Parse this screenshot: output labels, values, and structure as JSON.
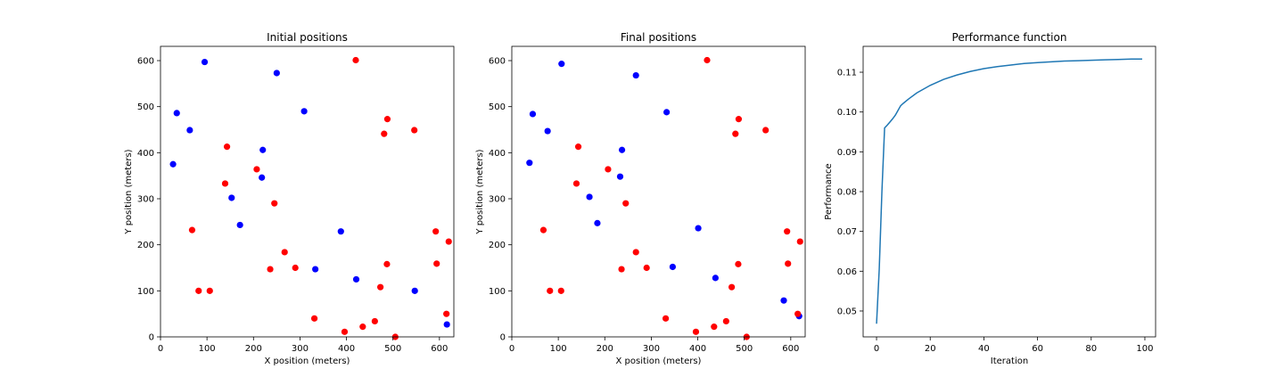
{
  "chart_data": [
    {
      "type": "scatter",
      "title": "Initial positions",
      "xlabel": "X position (meters)",
      "ylabel": "Y position (meters)",
      "xlim": [
        0,
        631
      ],
      "ylim": [
        0,
        631
      ],
      "xticks": [
        0,
        100,
        200,
        300,
        400,
        500,
        600
      ],
      "yticks": [
        0,
        100,
        200,
        300,
        400,
        500,
        600
      ],
      "grid": false,
      "series": [
        {
          "color": "#0000ff",
          "points": [
            [
              95,
              597
            ],
            [
              250,
              573
            ],
            [
              35,
              486
            ],
            [
              63,
              449
            ],
            [
              309,
              490
            ],
            [
              27,
              375
            ],
            [
              220,
              406
            ],
            [
              218,
              346
            ],
            [
              153,
              302
            ],
            [
              171,
              243
            ],
            [
              388,
              229
            ],
            [
              333,
              147
            ],
            [
              421,
              125
            ],
            [
              547,
              100
            ],
            [
              616,
              27
            ]
          ]
        },
        {
          "color": "#ff0000",
          "points": [
            [
              420,
              601
            ],
            [
              488,
              473
            ],
            [
              546,
              449
            ],
            [
              481,
              441
            ],
            [
              143,
              413
            ],
            [
              207,
              364
            ],
            [
              139,
              333
            ],
            [
              245,
              290
            ],
            [
              68,
              232
            ],
            [
              267,
              184
            ],
            [
              592,
              229
            ],
            [
              620,
              207
            ],
            [
              487,
              158
            ],
            [
              594,
              159
            ],
            [
              236,
              147
            ],
            [
              290,
              150
            ],
            [
              82,
              100
            ],
            [
              106,
              100
            ],
            [
              473,
              108
            ],
            [
              331,
              40
            ],
            [
              461,
              34
            ],
            [
              435,
              22
            ],
            [
              396,
              11
            ],
            [
              505,
              0
            ],
            [
              615,
              50
            ]
          ]
        }
      ]
    },
    {
      "type": "scatter",
      "title": "Final positions",
      "xlabel": "X position (meters)",
      "ylabel": "",
      "ylabel_visible": "Y position (meters)",
      "xlim": [
        0,
        631
      ],
      "ylim": [
        0,
        631
      ],
      "xticks": [
        0,
        100,
        200,
        300,
        400,
        500,
        600
      ],
      "yticks": [
        0,
        100,
        200,
        300,
        400,
        500,
        600
      ],
      "grid": false,
      "series": [
        {
          "color": "#0000ff",
          "points": [
            [
              107,
              593
            ],
            [
              267,
              568
            ],
            [
              45,
              484
            ],
            [
              77,
              447
            ],
            [
              333,
              488
            ],
            [
              38,
              378
            ],
            [
              237,
              406
            ],
            [
              233,
              348
            ],
            [
              167,
              304
            ],
            [
              184,
              247
            ],
            [
              401,
              236
            ],
            [
              346,
              152
            ],
            [
              438,
              128
            ],
            [
              585,
              79
            ],
            [
              618,
              45
            ]
          ]
        },
        {
          "color": "#ff0000",
          "points": [
            [
              420,
              601
            ],
            [
              488,
              473
            ],
            [
              546,
              449
            ],
            [
              481,
              441
            ],
            [
              143,
              413
            ],
            [
              207,
              364
            ],
            [
              139,
              333
            ],
            [
              245,
              290
            ],
            [
              68,
              232
            ],
            [
              267,
              184
            ],
            [
              592,
              229
            ],
            [
              620,
              207
            ],
            [
              487,
              158
            ],
            [
              594,
              159
            ],
            [
              236,
              147
            ],
            [
              290,
              150
            ],
            [
              82,
              100
            ],
            [
              106,
              100
            ],
            [
              473,
              108
            ],
            [
              331,
              40
            ],
            [
              461,
              34
            ],
            [
              435,
              22
            ],
            [
              396,
              11
            ],
            [
              505,
              0
            ],
            [
              615,
              50
            ]
          ]
        }
      ]
    },
    {
      "type": "line",
      "title": "Performance function",
      "xlabel": "Iteration",
      "ylabel": "Performance",
      "xlim": [
        -5,
        104
      ],
      "ylim": [
        0.0435,
        0.1165
      ],
      "xticks": [
        0,
        20,
        40,
        60,
        80,
        100
      ],
      "yticks": [
        0.05,
        0.06,
        0.07,
        0.08,
        0.09,
        0.1,
        0.11
      ],
      "ytick_labels": [
        "0.05",
        "0.06",
        "0.07",
        "0.08",
        "0.09",
        "0.10",
        "0.11"
      ],
      "grid": false,
      "series": [
        {
          "color": "#1f77b4",
          "x": [
            0,
            1,
            2,
            3,
            4,
            5,
            6,
            7,
            8,
            9,
            10,
            12,
            15,
            20,
            25,
            30,
            35,
            40,
            45,
            50,
            55,
            60,
            65,
            70,
            75,
            80,
            85,
            90,
            95,
            99
          ],
          "y": [
            0.0468,
            0.0605,
            0.08,
            0.096,
            0.0967,
            0.0975,
            0.0983,
            0.0992,
            0.1004,
            0.1016,
            0.1022,
            0.1033,
            0.1048,
            0.1067,
            0.1082,
            0.1093,
            0.1102,
            0.1109,
            0.1114,
            0.1118,
            0.1122,
            0.1124,
            0.1126,
            0.1128,
            0.1129,
            0.113,
            0.1131,
            0.1132,
            0.1133,
            0.1133
          ]
        }
      ]
    }
  ]
}
